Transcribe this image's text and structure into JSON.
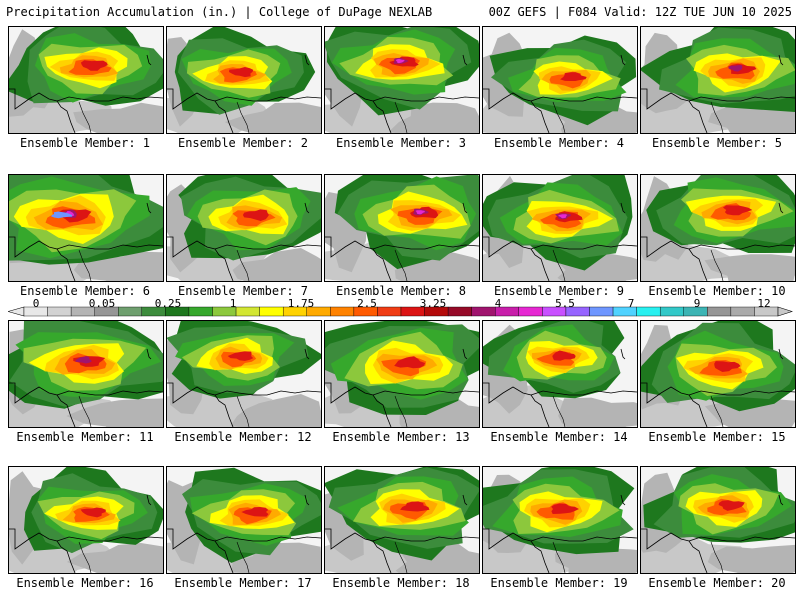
{
  "header": {
    "title": "Precipitation Accumulation (in.) | College of DuPage NEXLAB",
    "run_info": "00Z GEFS | F084 Valid: 12Z TUE JUN 10 2025"
  },
  "panels": [
    {
      "label": "Ensemble Member: 1"
    },
    {
      "label": "Ensemble Member: 2"
    },
    {
      "label": "Ensemble Member: 3"
    },
    {
      "label": "Ensemble Member: 4"
    },
    {
      "label": "Ensemble Member: 5"
    },
    {
      "label": "Ensemble Member: 6"
    },
    {
      "label": "Ensemble Member: 7"
    },
    {
      "label": "Ensemble Member: 8"
    },
    {
      "label": "Ensemble Member: 9"
    },
    {
      "label": "Ensemble Member: 10"
    },
    {
      "label": "Ensemble Member: 11"
    },
    {
      "label": "Ensemble Member: 12"
    },
    {
      "label": "Ensemble Member: 13"
    },
    {
      "label": "Ensemble Member: 14"
    },
    {
      "label": "Ensemble Member: 15"
    },
    {
      "label": "Ensemble Member: 16"
    },
    {
      "label": "Ensemble Member: 17"
    },
    {
      "label": "Ensemble Member: 18"
    },
    {
      "label": "Ensemble Member: 19"
    },
    {
      "label": "Ensemble Member: 20"
    }
  ],
  "colorbar": {
    "tick_labels": [
      "0",
      "0.05",
      "0.25",
      "1",
      "1.75",
      "2.5",
      "3.25",
      "4",
      "5.5",
      "7",
      "9",
      "12"
    ],
    "colors": [
      "#e8e8e8",
      "#d2d2d2",
      "#b4b4b4",
      "#969696",
      "#6e9f6e",
      "#3c8c3c",
      "#1e781e",
      "#36a82c",
      "#8cc83c",
      "#d2e632",
      "#ffff00",
      "#ffd200",
      "#ffaa00",
      "#ff8200",
      "#ff5a00",
      "#f03c14",
      "#dc1414",
      "#b40a0a",
      "#960a28",
      "#a0146e",
      "#c81eaa",
      "#e628d2",
      "#c850ff",
      "#9664ff",
      "#6e96ff",
      "#50d2ff",
      "#28f0f0",
      "#32c8c8",
      "#3cb4b4",
      "#969696",
      "#aaaaaa",
      "#c8c8c8"
    ]
  }
}
